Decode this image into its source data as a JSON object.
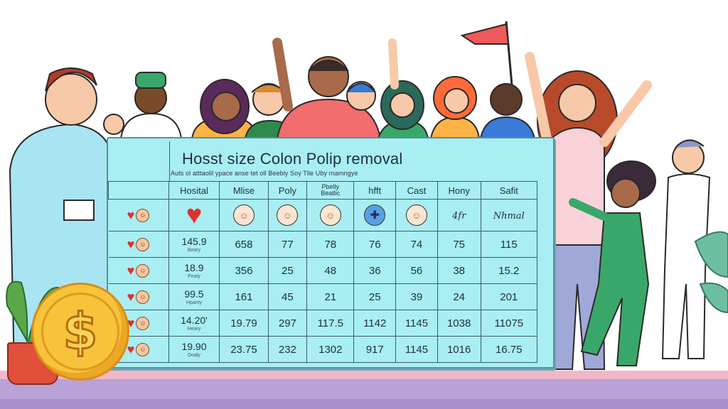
{
  "board": {
    "title": "Hosst size Colon Polip removal",
    "subtitle": "Auts ol atttaolil ypace anse tet oll Beebiy Soy Tlle Uby rnamngye"
  },
  "table": {
    "headers": [
      {
        "label": "Hosital"
      },
      {
        "label": "Mlise"
      },
      {
        "label": "Poly"
      },
      {
        "label": "Pbelly",
        "sub": "Beatlic"
      },
      {
        "label": "hfft"
      },
      {
        "label": "Cast"
      },
      {
        "label": "Hony"
      },
      {
        "label": "Safit"
      }
    ],
    "icon_row": {
      "script_a": "4fr",
      "script_b": "Nhmal"
    },
    "rows": [
      {
        "host": "145.9",
        "host_sub": "Beary",
        "values": [
          "658",
          "77",
          "78",
          "76",
          "74",
          "75",
          "115"
        ]
      },
      {
        "host": "18.9",
        "host_sub": "Peaty",
        "values": [
          "356",
          "25",
          "48",
          "36",
          "56",
          "38",
          "15.2"
        ]
      },
      {
        "host": "99.5",
        "host_sub": "Hpanty",
        "values": [
          "161",
          "45",
          "21",
          "25",
          "39",
          "24",
          "201"
        ]
      },
      {
        "host": "14.20'",
        "host_sub": "Heary",
        "values": [
          "19.79",
          "297",
          "117.5",
          "1142",
          "1145",
          "1038",
          "11075"
        ]
      },
      {
        "host": "19.90",
        "host_sub": "Doaly",
        "values": [
          "23.75",
          "232",
          "1302",
          "917",
          "1145",
          "1016",
          "16.75"
        ]
      }
    ]
  },
  "icons": {
    "heart": "heart-icon",
    "badge": "face-badge-icon",
    "coin": "dollar-coin-icon"
  },
  "coin_symbol": "$",
  "colors": {
    "board_bg": "#a8eef2",
    "heart": "#e0302e",
    "coin": "#f6c33a",
    "floor": "#b8a2d6"
  }
}
